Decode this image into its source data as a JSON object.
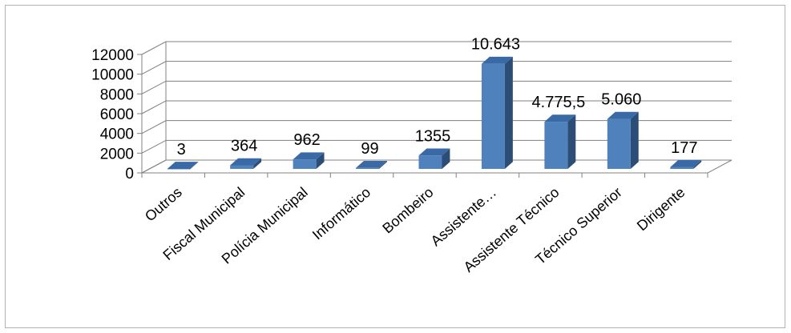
{
  "chart_data": {
    "type": "bar",
    "style": "3d-column",
    "categories": [
      "Outros",
      "Fiscal Municipal",
      "Polícia Municipal",
      "Informático",
      "Bombeiro",
      "Assistente…",
      "Assistente Técnico",
      "Técnico Superior",
      "Dirigente"
    ],
    "values": [
      3,
      364,
      962,
      99,
      1355,
      10643,
      4775.5,
      5060,
      177
    ],
    "data_labels": [
      "3",
      "364",
      "962",
      "99",
      "1355",
      "10.643",
      "4.775,5",
      "5.060",
      "177"
    ],
    "y_ticks": [
      "0",
      "2000",
      "4000",
      "6000",
      "8000",
      "10000",
      "12000"
    ],
    "ylim": [
      0,
      12000
    ],
    "grid": true,
    "legend": "none",
    "colors": {
      "bar_front": "#4f81bd",
      "bar_side": "#2c4d75",
      "bar_top": "#3a6aa6",
      "grid": "#808080"
    }
  }
}
